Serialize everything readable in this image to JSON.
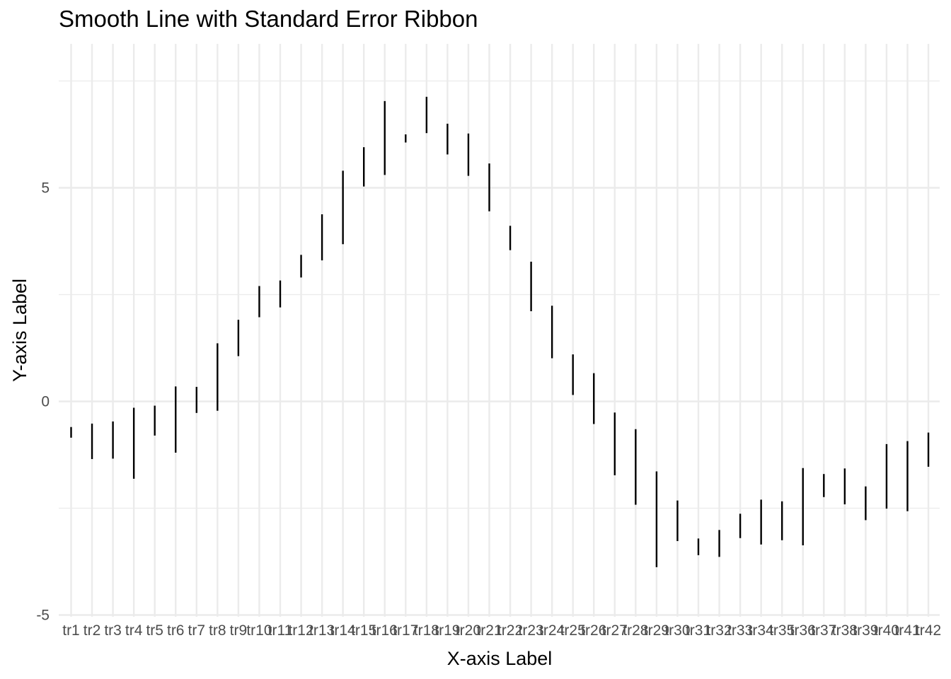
{
  "chart_data": {
    "type": "errorbar",
    "title": "Smooth Line with Standard Error Ribbon",
    "xlabel": "X-axis Label",
    "ylabel": "Y-axis Label",
    "ylim": [
      -5,
      8
    ],
    "yticks": [
      -5,
      0,
      5
    ],
    "grid": true,
    "categories": [
      "tr1",
      "tr2",
      "tr3",
      "tr4",
      "tr5",
      "tr6",
      "tr7",
      "tr8",
      "tr9",
      "tr10",
      "tr11",
      "tr12",
      "tr13",
      "tr14",
      "tr15",
      "tr16",
      "tr17",
      "tr18",
      "tr19",
      "tr20",
      "tr21",
      "tr22",
      "tr23",
      "tr24",
      "tr25",
      "tr26",
      "tr27",
      "tr28",
      "tr29",
      "tr30",
      "tr31",
      "tr32",
      "tr33",
      "tr34",
      "tr35",
      "tr36",
      "tr37",
      "tr38",
      "tr39",
      "tr40",
      "tr41",
      "tr42"
    ],
    "lower": [
      -0.85,
      -1.35,
      -1.34,
      -1.81,
      -0.8,
      -1.2,
      -0.27,
      -0.22,
      1.06,
      1.97,
      2.2,
      2.9,
      3.3,
      3.68,
      5.03,
      5.3,
      6.06,
      6.28,
      5.78,
      5.28,
      4.45,
      3.54,
      2.11,
      1.01,
      0.15,
      -0.53,
      -1.73,
      -2.42,
      -3.88,
      -3.27,
      -3.6,
      -3.64,
      -3.2,
      -3.35,
      -3.25,
      -3.37,
      -2.24,
      -2.41,
      -2.78,
      -2.51,
      -2.57,
      -1.53
    ],
    "upper": [
      -0.6,
      -0.52,
      -0.47,
      -0.15,
      -0.1,
      0.35,
      0.34,
      1.36,
      1.91,
      2.7,
      2.83,
      3.43,
      4.38,
      5.4,
      5.95,
      7.03,
      6.25,
      7.13,
      6.5,
      6.27,
      5.57,
      4.11,
      3.27,
      2.24,
      1.1,
      0.66,
      -0.26,
      -0.65,
      -1.64,
      -2.32,
      -3.21,
      -3.01,
      -2.63,
      -2.3,
      -2.34,
      -1.56,
      -1.7,
      -1.57,
      -1.99,
      -1.0,
      -0.93,
      -0.73
    ]
  }
}
